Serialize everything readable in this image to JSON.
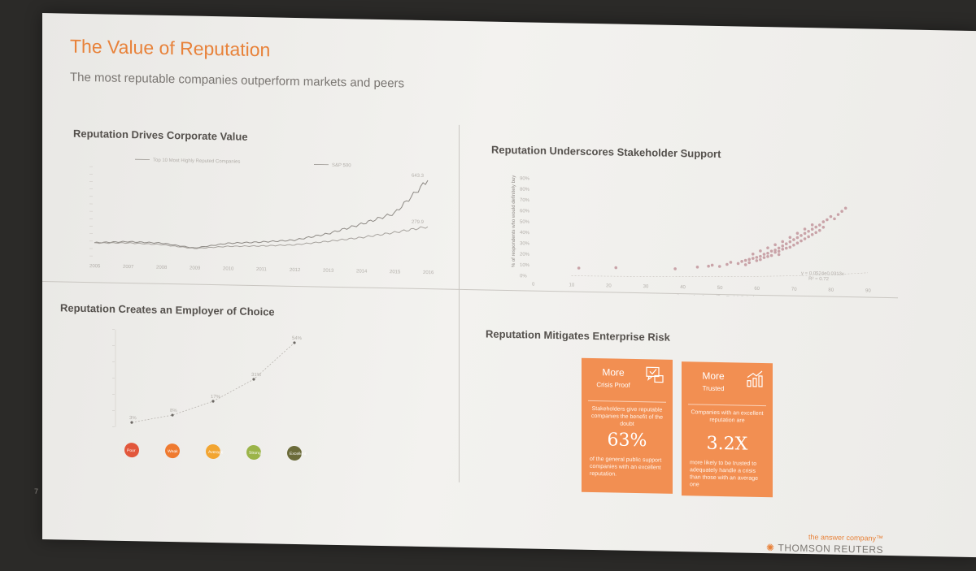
{
  "slide": {
    "title": "The Value of Reputation",
    "subtitle": "The most reputable companies outperform markets and peers",
    "page_number": "7",
    "brand_tagline": "the answer company™",
    "brand_name": "THOMSON REUTERS"
  },
  "panels": {
    "corporate_value": {
      "title": "Reputation Drives Corporate Value",
      "legend": [
        "Top 10 Most Highly Reputed Companies",
        "S&P 500"
      ],
      "end_labels": [
        "643.3",
        "279.9"
      ],
      "chart_data": {
        "type": "line",
        "x": [
          "2005",
          "2007",
          "2008",
          "2009",
          "2010",
          "2011",
          "2012",
          "2013",
          "2014",
          "2015",
          "2016"
        ],
        "series": [
          {
            "name": "Top 10 Most Highly Reputed Companies",
            "values": [
              105,
              118,
              112,
              78,
              120,
              135,
              155,
              210,
              290,
              380,
              643
            ]
          },
          {
            "name": "S&P 500",
            "values": [
              102,
              108,
              100,
              74,
              96,
              104,
              118,
              150,
              185,
              230,
              280
            ]
          }
        ]
      }
    },
    "stakeholder_support": {
      "title": "Reputation Underscores Stakeholder Support",
      "chart_data": {
        "type": "scatter",
        "xlabel": "Reputation Score (RepTrak® Pulse)",
        "ylabel": "% of respondents who would definitely buy",
        "x_ticks": [
          "0",
          "10",
          "20",
          "30",
          "40",
          "50",
          "60",
          "70",
          "80",
          "90"
        ],
        "y_ticks": [
          "0%",
          "10%",
          "20%",
          "30%",
          "40%",
          "50%",
          "60%",
          "70%",
          "80%",
          "90%"
        ],
        "xlim": [
          0,
          90
        ],
        "ylim": [
          0,
          90
        ],
        "equation": "y = 0.0524e0.0313x",
        "r_squared": "R² = 0.72",
        "points": [
          [
            12,
            8
          ],
          [
            22,
            9
          ],
          [
            38,
            9
          ],
          [
            44,
            11
          ],
          [
            47,
            12
          ],
          [
            48,
            13
          ],
          [
            50,
            12
          ],
          [
            52,
            14
          ],
          [
            53,
            16
          ],
          [
            55,
            15
          ],
          [
            56,
            17
          ],
          [
            57,
            18
          ],
          [
            58,
            19
          ],
          [
            58,
            16
          ],
          [
            59,
            20
          ],
          [
            60,
            21
          ],
          [
            60,
            18
          ],
          [
            61,
            22
          ],
          [
            61,
            19
          ],
          [
            62,
            24
          ],
          [
            62,
            21
          ],
          [
            63,
            25
          ],
          [
            63,
            22
          ],
          [
            64,
            27
          ],
          [
            64,
            23
          ],
          [
            65,
            28
          ],
          [
            65,
            26
          ],
          [
            66,
            30
          ],
          [
            66,
            27
          ],
          [
            67,
            32
          ],
          [
            67,
            29
          ],
          [
            68,
            34
          ],
          [
            68,
            30
          ],
          [
            69,
            36
          ],
          [
            69,
            31
          ],
          [
            70,
            38
          ],
          [
            70,
            33
          ],
          [
            71,
            40
          ],
          [
            71,
            35
          ],
          [
            72,
            42
          ],
          [
            72,
            37
          ],
          [
            73,
            44
          ],
          [
            73,
            39
          ],
          [
            74,
            46
          ],
          [
            74,
            41
          ],
          [
            75,
            48
          ],
          [
            75,
            43
          ],
          [
            76,
            50
          ],
          [
            76,
            45
          ],
          [
            77,
            52
          ],
          [
            77,
            47
          ],
          [
            78,
            55
          ],
          [
            78,
            50
          ],
          [
            79,
            57
          ],
          [
            80,
            60
          ],
          [
            81,
            58
          ],
          [
            82,
            62
          ],
          [
            83,
            65
          ],
          [
            84,
            68
          ],
          [
            59,
            24
          ],
          [
            61,
            27
          ],
          [
            63,
            30
          ],
          [
            65,
            33
          ],
          [
            67,
            36
          ],
          [
            69,
            40
          ],
          [
            71,
            44
          ],
          [
            73,
            48
          ],
          [
            75,
            52
          ],
          [
            57,
            14
          ],
          [
            66,
            24
          ]
        ]
      }
    },
    "employer_choice": {
      "title": "Reputation Creates an Employer of Choice",
      "chart_data": {
        "type": "line",
        "categories": [
          "Poor",
          "Weak",
          "Average",
          "Strong",
          "Excellent"
        ],
        "values": [
          3,
          8,
          17,
          31,
          54
        ],
        "value_labels": [
          "3%",
          "8%",
          "17%",
          "31%",
          "54%"
        ],
        "colors": [
          "#e2573b",
          "#ef7a30",
          "#f2a531",
          "#9bb449",
          "#6b6b3a"
        ]
      }
    },
    "enterprise_risk": {
      "title": "Reputation Mitigates Enterprise Risk",
      "cards": [
        {
          "heading": "More",
          "subheading": "Crisis Proof",
          "description": "Stakeholders give reputable companies the benefit of the doubt",
          "stat": "63%",
          "footnote": "of the general public support companies with an excellent reputation."
        },
        {
          "heading": "More",
          "subheading": "Trusted",
          "description": "Companies with an excellent reputation are",
          "stat": "3.2X",
          "footnote": "more likely to be trusted to adequately handle a crisis than those with an average one"
        }
      ]
    }
  }
}
